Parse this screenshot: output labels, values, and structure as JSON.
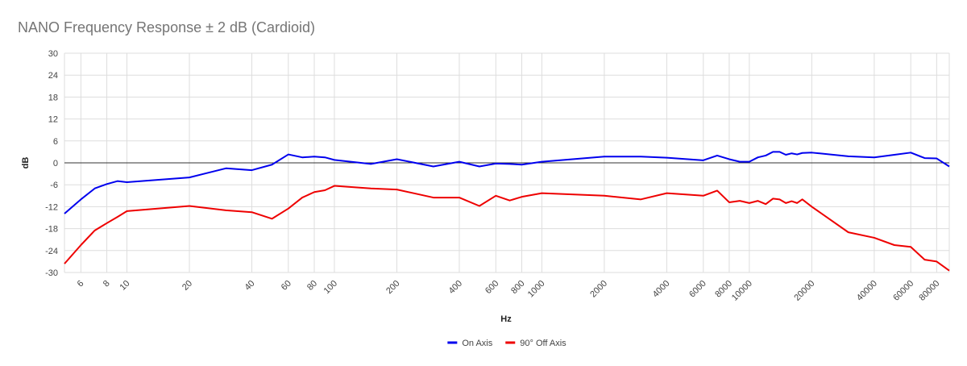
{
  "chart_data": {
    "type": "line",
    "title": "NANO Frequency Response  ± 2 dB (Cardioid)",
    "x_label": "Hz",
    "y_label": "dB",
    "x_scale": "log",
    "grid": true,
    "legend": "bottom",
    "xlim": [
      5,
      92000
    ],
    "ylim": [
      -30,
      30
    ],
    "xticks": [
      6,
      8,
      10,
      20,
      40,
      60,
      80,
      100,
      200,
      400,
      600,
      800,
      1000,
      2000,
      4000,
      6000,
      8000,
      10000,
      20000,
      40000,
      60000,
      80000
    ],
    "yticks": [
      -30,
      -24,
      -18,
      -12,
      -6,
      0,
      6,
      12,
      18,
      24,
      30
    ],
    "x": [
      5,
      6,
      7,
      8,
      9,
      10,
      20,
      30,
      40,
      50,
      60,
      70,
      80,
      90,
      100,
      150,
      200,
      300,
      400,
      500,
      600,
      700,
      800,
      1000,
      2000,
      3000,
      4000,
      6000,
      7000,
      8000,
      9000,
      10000,
      11000,
      12000,
      13000,
      14000,
      15000,
      16000,
      17000,
      18000,
      20000,
      30000,
      40000,
      50000,
      60000,
      70000,
      80000,
      92000
    ],
    "series": [
      {
        "name": "On Axis",
        "color": "#0000ee",
        "values": [
          -13.9,
          -10,
          -7,
          -5.8,
          -5,
          -5.3,
          -4,
          -1.5,
          -2,
          -0.5,
          2.3,
          1.5,
          1.7,
          1.5,
          0.8,
          -0.3,
          1,
          -1,
          0.3,
          -1,
          -0.2,
          -0.3,
          -0.5,
          0.3,
          1.7,
          1.7,
          1.4,
          0.7,
          2,
          1,
          0.3,
          0.3,
          1.5,
          2,
          3,
          3,
          2.2,
          2.6,
          2.3,
          2.7,
          2.8,
          1.8,
          1.5,
          2.2,
          2.8,
          1.3,
          1.2,
          -1
        ]
      },
      {
        "name": "90° Off Axis",
        "color": "#ee0000",
        "values": [
          -27.6,
          -22.5,
          -18.5,
          -16.5,
          -14.8,
          -13.2,
          -11.8,
          -13,
          -13.5,
          -15.3,
          -12.5,
          -9.5,
          -8,
          -7.5,
          -6.3,
          -7,
          -7.3,
          -9.5,
          -9.5,
          -11.8,
          -9,
          -10.3,
          -9.3,
          -8.3,
          -9,
          -10,
          -8.3,
          -9,
          -7.6,
          -10.8,
          -10.4,
          -11,
          -10.4,
          -11.3,
          -9.8,
          -10,
          -11,
          -10.5,
          -11,
          -10,
          -12,
          -19,
          -20.5,
          -22.5,
          -23,
          -26.5,
          -27,
          -29.5
        ]
      }
    ]
  }
}
